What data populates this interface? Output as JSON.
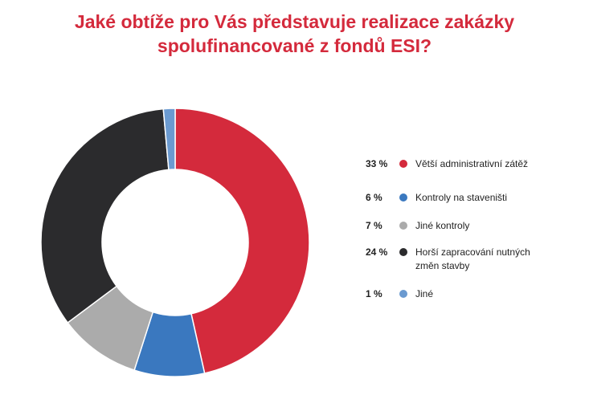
{
  "chart": {
    "title_line1": "Jaké obtíže pro Vás představuje realizace zakázky",
    "title_line2": "spolufinancované z fondů ESI?"
  },
  "chart_data": {
    "type": "pie",
    "title": "Jaké obtíže pro Vás představuje realizace zakázky spolufinancované z fondů ESI?",
    "legend_position": "right",
    "series": [
      {
        "name": "Větší administrativní zátěž",
        "value_label": "33 %",
        "value": 33,
        "color": "#d42a3c"
      },
      {
        "name": "Kontroly na staveništi",
        "value_label": "6 %",
        "value": 6,
        "color": "#3a78bf"
      },
      {
        "name": "Jiné kontroly",
        "value_label": "7 %",
        "value": 7,
        "color": "#ababab"
      },
      {
        "name": "Horší zapracování nutných změn stavby",
        "value_label": "24 %",
        "value": 24,
        "color": "#2b2b2d"
      },
      {
        "name": "Jiné",
        "value_label": "1 %",
        "value": 1,
        "color": "#6b9ad0"
      }
    ]
  }
}
